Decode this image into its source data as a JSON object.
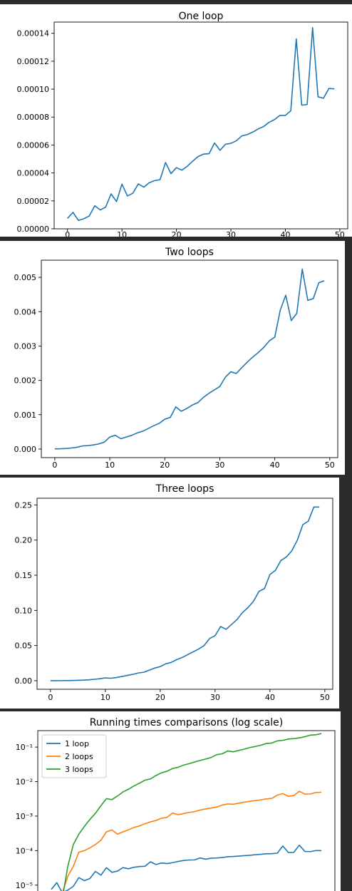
{
  "chart_data": [
    {
      "type": "line",
      "title": "One loop",
      "xlabel": "",
      "ylabel": "",
      "xlim": [
        -2.45,
        51.45
      ],
      "ylim": [
        0.0,
        0.000148
      ],
      "xticks": [
        0,
        10,
        20,
        30,
        40,
        50
      ],
      "yticks": [
        0.0,
        2e-05,
        4e-05,
        6e-05,
        8e-05,
        0.0001,
        0.00012,
        0.00014
      ],
      "xtick_labels": [
        "0",
        "10",
        "20",
        "30",
        "40",
        "50"
      ],
      "ytick_labels": [
        "0.00000",
        "0.00002",
        "0.00004",
        "0.00006",
        "0.00008",
        "0.00010",
        "0.00012",
        "0.00014"
      ],
      "grid": false,
      "series": [
        {
          "color": "#1f77b4",
          "x": [
            0,
            1,
            2,
            3,
            4,
            5,
            6,
            7,
            8,
            9,
            10,
            11,
            12,
            13,
            14,
            15,
            16,
            17,
            18,
            19,
            20,
            21,
            22,
            23,
            24,
            25,
            26,
            27,
            28,
            29,
            30,
            31,
            32,
            33,
            34,
            35,
            36,
            37,
            38,
            39,
            40,
            41,
            42,
            43,
            44,
            45,
            46,
            47,
            48,
            49
          ],
          "values": [
            7.5e-06,
            1.18e-05,
            6e-06,
            7.2e-06,
            9.2e-06,
            1.65e-05,
            1.35e-05,
            1.55e-05,
            2.5e-05,
            1.95e-05,
            3.2e-05,
            2.35e-05,
            2.55e-05,
            3.22e-05,
            2.98e-05,
            3.3e-05,
            3.45e-05,
            3.52e-05,
            4.75e-05,
            3.95e-05,
            4.38e-05,
            4.2e-05,
            4.48e-05,
            4.85e-05,
            5.18e-05,
            5.35e-05,
            5.38e-05,
            6.15e-05,
            5.62e-05,
            6.05e-05,
            6.12e-05,
            6.3e-05,
            6.65e-05,
            6.75e-05,
            6.92e-05,
            7.15e-05,
            7.32e-05,
            7.62e-05,
            7.82e-05,
            8.12e-05,
            8.12e-05,
            8.45e-05,
            0.000136,
            8.85e-05,
            8.9e-05,
            0.000144,
            9.45e-05,
            9.35e-05,
            0.0001005,
            0.0001002
          ]
        }
      ]
    },
    {
      "type": "line",
      "title": "Two loops",
      "xlabel": "",
      "ylabel": "",
      "xlim": [
        -2.45,
        51.45
      ],
      "ylim": [
        -0.00025,
        0.0055
      ],
      "xticks": [
        0,
        10,
        20,
        30,
        40,
        50
      ],
      "yticks": [
        0.0,
        0.001,
        0.002,
        0.003,
        0.004,
        0.005
      ],
      "xtick_labels": [
        "0",
        "10",
        "20",
        "30",
        "40",
        "50"
      ],
      "ytick_labels": [
        "0.000",
        "0.001",
        "0.002",
        "0.003",
        "0.004",
        "0.005"
      ],
      "grid": false,
      "series": [
        {
          "color": "#1f77b4",
          "x": [
            0,
            1,
            2,
            3,
            4,
            5,
            6,
            7,
            8,
            9,
            10,
            11,
            12,
            13,
            14,
            15,
            16,
            17,
            18,
            19,
            20,
            21,
            22,
            23,
            24,
            25,
            26,
            27,
            28,
            29,
            30,
            31,
            32,
            33,
            34,
            35,
            36,
            37,
            38,
            39,
            40,
            41,
            42,
            43,
            44,
            45,
            46,
            47,
            48,
            49
          ],
          "values": [
            5e-06,
            8e-06,
            1.5e-05,
            3e-05,
            5e-05,
            9e-05,
            0.0001,
            0.00012,
            0.00015,
            0.0002,
            0.00035,
            0.0004,
            0.0003,
            0.00035,
            0.0004,
            0.00047,
            0.00052,
            0.0006,
            0.00068,
            0.00075,
            0.00087,
            0.00092,
            0.00123,
            0.0011,
            0.00118,
            0.00128,
            0.00135,
            0.0015,
            0.00162,
            0.00172,
            0.00182,
            0.00209,
            0.00225,
            0.0022,
            0.00237,
            0.00253,
            0.00268,
            0.00281,
            0.00296,
            0.00315,
            0.00326,
            0.00405,
            0.00448,
            0.00374,
            0.00395,
            0.00524,
            0.00433,
            0.00438,
            0.00484,
            0.0049
          ]
        }
      ]
    },
    {
      "type": "line",
      "title": "Three loops",
      "xlabel": "",
      "ylabel": "",
      "xlim": [
        -2.45,
        51.45
      ],
      "ylim": [
        -0.0122,
        0.2595
      ],
      "xticks": [
        0,
        10,
        20,
        30,
        40,
        50
      ],
      "yticks": [
        0.0,
        0.05,
        0.1,
        0.15,
        0.2,
        0.25
      ],
      "xtick_labels": [
        "0",
        "10",
        "20",
        "30",
        "40",
        "50"
      ],
      "ytick_labels": [
        "0.00",
        "0.05",
        "0.10",
        "0.15",
        "0.20",
        "0.25"
      ],
      "grid": false,
      "series": [
        {
          "color": "#1f77b4",
          "x": [
            0,
            1,
            2,
            3,
            4,
            5,
            6,
            7,
            8,
            9,
            10,
            11,
            12,
            13,
            14,
            15,
            16,
            17,
            18,
            19,
            20,
            21,
            22,
            23,
            24,
            25,
            26,
            27,
            28,
            29,
            30,
            31,
            32,
            33,
            34,
            35,
            36,
            37,
            38,
            39,
            40,
            41,
            42,
            43,
            44,
            45,
            46,
            47,
            48,
            49
          ],
          "values": [
            0.0,
            0.0,
            0.0001,
            0.0002,
            0.0003,
            0.0005,
            0.0008,
            0.0013,
            0.002,
            0.0028,
            0.004,
            0.0035,
            0.0045,
            0.006,
            0.0075,
            0.009,
            0.011,
            0.012,
            0.015,
            0.018,
            0.02,
            0.024,
            0.026,
            0.03,
            0.033,
            0.037,
            0.041,
            0.045,
            0.05,
            0.06,
            0.064,
            0.077,
            0.073,
            0.08,
            0.087,
            0.097,
            0.104,
            0.113,
            0.127,
            0.131,
            0.151,
            0.157,
            0.171,
            0.176,
            0.185,
            0.2,
            0.222,
            0.227,
            0.247,
            0.247
          ]
        }
      ]
    },
    {
      "type": "line",
      "title": "Running times comparisons (log scale)",
      "xlabel": "",
      "ylabel": "",
      "xlim": [
        -2.45,
        51.45
      ],
      "ylim": [
        4.2e-06,
        0.3
      ],
      "yscale": "log",
      "yticks": [
        1e-05,
        0.0001,
        0.001,
        0.01,
        0.1
      ],
      "ytick_labels": [
        "10⁻⁵",
        "10⁻⁴",
        "10⁻³",
        "10⁻²",
        "10⁻¹"
      ],
      "grid": false,
      "legend": "upper-left",
      "series": [
        {
          "name": "1 loop",
          "color": "#1f77b4",
          "x": [
            0,
            1,
            2,
            3,
            4,
            5,
            6,
            7,
            8,
            9,
            10,
            11,
            12,
            13,
            14,
            15,
            16,
            17,
            18,
            19,
            20,
            21,
            22,
            23,
            24,
            25,
            26,
            27,
            28,
            29,
            30,
            31,
            32,
            33,
            34,
            35,
            36,
            37,
            38,
            39,
            40,
            41,
            42,
            43,
            44,
            45,
            46,
            47,
            48,
            49
          ],
          "values": [
            7.5e-06,
            1.18e-05,
            6e-06,
            7.2e-06,
            9.2e-06,
            1.65e-05,
            1.35e-05,
            1.55e-05,
            2.5e-05,
            1.95e-05,
            3.2e-05,
            2.35e-05,
            2.55e-05,
            3.22e-05,
            2.98e-05,
            3.3e-05,
            3.45e-05,
            3.52e-05,
            4.75e-05,
            3.95e-05,
            4.38e-05,
            4.2e-05,
            4.48e-05,
            4.85e-05,
            5.18e-05,
            5.35e-05,
            5.38e-05,
            6.15e-05,
            5.62e-05,
            6.05e-05,
            6.12e-05,
            6.3e-05,
            6.65e-05,
            6.75e-05,
            6.92e-05,
            7.15e-05,
            7.32e-05,
            7.62e-05,
            7.82e-05,
            8.12e-05,
            8.12e-05,
            8.45e-05,
            0.000136,
            8.85e-05,
            8.9e-05,
            0.000144,
            9.45e-05,
            9.35e-05,
            0.0001005,
            0.0001002
          ]
        },
        {
          "name": "2 loops",
          "color": "#ff7f0e",
          "x": [
            2,
            3,
            4,
            5,
            6,
            7,
            8,
            9,
            10,
            11,
            12,
            13,
            14,
            15,
            16,
            17,
            18,
            19,
            20,
            21,
            22,
            23,
            24,
            25,
            26,
            27,
            28,
            29,
            30,
            31,
            32,
            33,
            34,
            35,
            36,
            37,
            38,
            39,
            40,
            41,
            42,
            43,
            44,
            45,
            46,
            47,
            48,
            49
          ],
          "values": [
            6e-06,
            1.8e-05,
            3.5e-05,
            9e-05,
            0.0001,
            0.00012,
            0.00015,
            0.0002,
            0.00035,
            0.0004,
            0.0003,
            0.00035,
            0.0004,
            0.00047,
            0.00052,
            0.0006,
            0.00068,
            0.00075,
            0.00087,
            0.00092,
            0.00123,
            0.0011,
            0.00118,
            0.00128,
            0.00135,
            0.0015,
            0.00162,
            0.00172,
            0.00182,
            0.00209,
            0.00225,
            0.0022,
            0.00237,
            0.00253,
            0.00268,
            0.00281,
            0.00296,
            0.00315,
            0.00326,
            0.00405,
            0.00448,
            0.00374,
            0.00395,
            0.00524,
            0.00433,
            0.00438,
            0.00484,
            0.0049
          ]
        },
        {
          "name": "3 loops",
          "color": "#2ca02c",
          "x": [
            2,
            3,
            4,
            5,
            6,
            7,
            8,
            9,
            10,
            11,
            12,
            13,
            14,
            15,
            16,
            17,
            18,
            19,
            20,
            21,
            22,
            23,
            24,
            25,
            26,
            27,
            28,
            29,
            30,
            31,
            32,
            33,
            34,
            35,
            36,
            37,
            38,
            39,
            40,
            41,
            42,
            43,
            44,
            45,
            46,
            47,
            48,
            49
          ],
          "values": [
            4e-06,
            3.5e-05,
            0.00015,
            0.0003,
            0.0005,
            0.0008,
            0.0012,
            0.002,
            0.0032,
            0.003,
            0.0038,
            0.005,
            0.006,
            0.0075,
            0.009,
            0.011,
            0.012,
            0.015,
            0.018,
            0.02,
            0.024,
            0.026,
            0.03,
            0.033,
            0.037,
            0.041,
            0.045,
            0.05,
            0.06,
            0.064,
            0.077,
            0.073,
            0.08,
            0.087,
            0.097,
            0.104,
            0.113,
            0.127,
            0.131,
            0.151,
            0.157,
            0.171,
            0.176,
            0.185,
            0.2,
            0.222,
            0.227,
            0.247
          ]
        }
      ]
    }
  ]
}
